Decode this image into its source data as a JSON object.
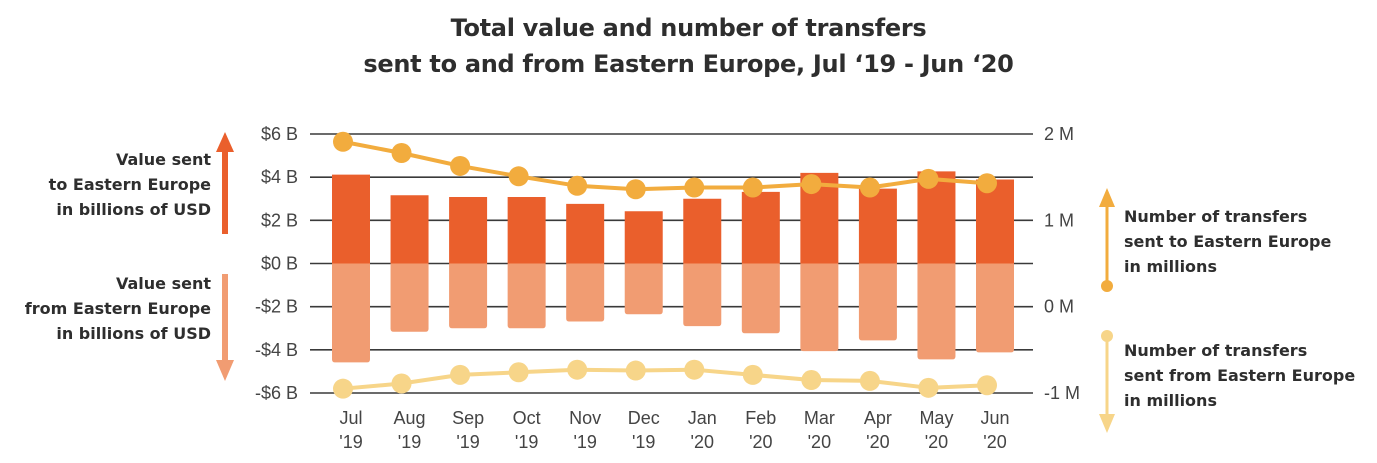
{
  "chart_data": {
    "type": "bar",
    "title_line1": "Total value and number of transfers",
    "title_line2": "sent to and from Eastern Europe, Jul ‘19 - Jun ‘20",
    "categories": [
      {
        "month": "Jul",
        "year": "'19"
      },
      {
        "month": "Aug",
        "year": "'19"
      },
      {
        "month": "Sep",
        "year": "'19"
      },
      {
        "month": "Oct",
        "year": "'19"
      },
      {
        "month": "Nov",
        "year": "'19"
      },
      {
        "month": "Dec",
        "year": "'19"
      },
      {
        "month": "Jan",
        "year": "'20"
      },
      {
        "month": "Feb",
        "year": "'20"
      },
      {
        "month": "Mar",
        "year": "'20"
      },
      {
        "month": "Apr",
        "year": "'20"
      },
      {
        "month": "May",
        "year": "'20"
      },
      {
        "month": "Jun",
        "year": "'20"
      }
    ],
    "left_axis": {
      "unit": "billions of USD",
      "ylim": [
        -6,
        6
      ],
      "ticks": [
        6,
        4,
        2,
        0,
        -2,
        -4,
        -6
      ],
      "tick_labels": [
        "$6 B",
        "$4 B",
        "$2 B",
        "$0 B",
        "-$2 B",
        "-$4 B",
        "-$6 B"
      ]
    },
    "right_axis": {
      "unit": "millions",
      "ylim": [
        -1,
        2
      ],
      "ticks": [
        2,
        1,
        0,
        -1
      ],
      "tick_labels": [
        "2 M",
        "1 M",
        "0 M",
        "-1 M"
      ]
    },
    "grid": true,
    "series": [
      {
        "name": "Value sent to Eastern Europe",
        "kind": "bar",
        "axis": "left",
        "color": "#EA5F2C",
        "values": [
          4.12,
          3.16,
          3.08,
          3.08,
          2.76,
          2.42,
          3.0,
          3.32,
          4.2,
          3.47,
          4.27,
          3.89
        ]
      },
      {
        "name": "Value sent from Eastern Europe",
        "kind": "bar",
        "axis": "left",
        "color": "#F19C72",
        "values": [
          -4.58,
          -3.16,
          -3.0,
          -3.0,
          -2.69,
          -2.35,
          -2.9,
          -3.23,
          -4.06,
          -3.56,
          -4.44,
          -4.12
        ]
      },
      {
        "name": "Number of transfers sent to Eastern Europe",
        "kind": "line",
        "axis": "right",
        "color": "#F2AC3E",
        "values": [
          1.91,
          1.78,
          1.63,
          1.51,
          1.4,
          1.36,
          1.38,
          1.38,
          1.42,
          1.38,
          1.48,
          1.43
        ]
      },
      {
        "name": "Number of transfers sent from Eastern Europe",
        "kind": "line",
        "axis": "right",
        "color": "#F7D589",
        "values": [
          -0.95,
          -0.89,
          -0.79,
          -0.76,
          -0.73,
          -0.74,
          -0.73,
          -0.79,
          -0.85,
          -0.86,
          -0.94,
          -0.91
        ]
      }
    ],
    "annotations": {
      "left_top": [
        "Value sent",
        "to Eastern Europe",
        "in billions of USD"
      ],
      "left_bottom": [
        "Value sent",
        "from Eastern Europe",
        "in billions of USD"
      ],
      "right_top": [
        "Number of transfers",
        "sent to Eastern Europe",
        "in millions"
      ],
      "right_bottom": [
        "Number of transfers",
        "sent from Eastern Europe",
        "in millions"
      ]
    },
    "colors": {
      "grid": "#3a3a3a",
      "tick_text": "#444444",
      "text": "#2e2e2e"
    }
  }
}
